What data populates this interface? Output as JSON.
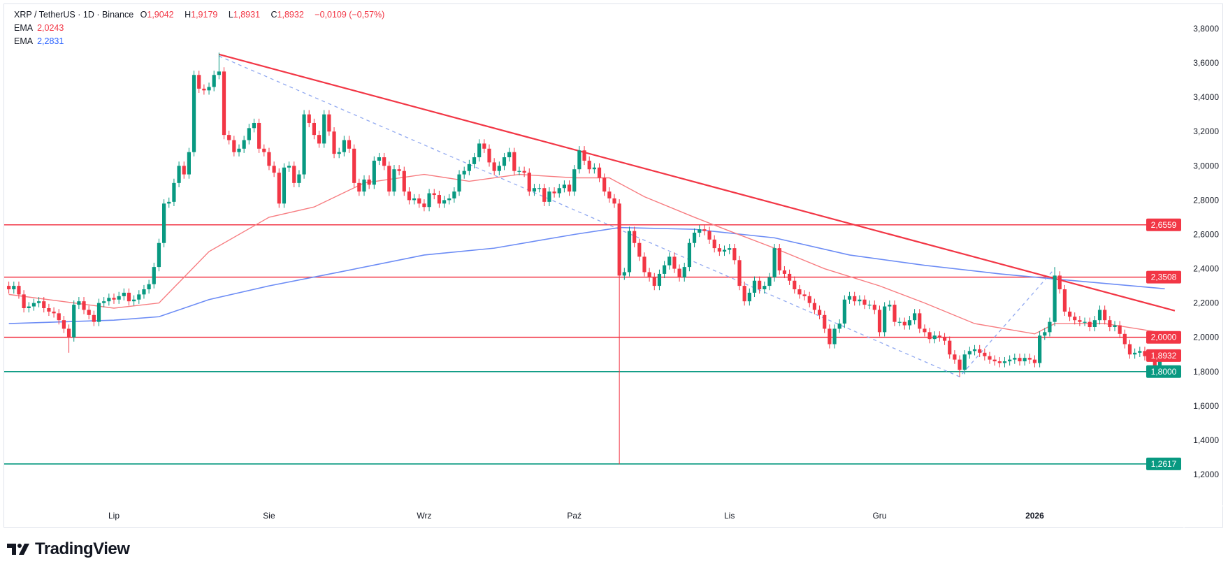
{
  "header": {
    "symbol": "XRP / TetherUS · 1D · Binance",
    "o_label": "O",
    "o": "1,9042",
    "h_label": "H",
    "h": "1,9179",
    "l_label": "L",
    "l": "1,8931",
    "c_label": "C",
    "c": "1,8932",
    "change": "−0,0109 (−0,57%)",
    "ema1_label": "EMA",
    "ema1_value": "2,0243",
    "ema2_label": "EMA",
    "ema2_value": "2,2831"
  },
  "branding": {
    "logo_text": "TradingView"
  },
  "colors": {
    "up": "#089981",
    "down": "#f23645",
    "ema_fast": "#f77c80",
    "ema_slow": "#6c8cf5",
    "support": "#089981",
    "resistance": "#f23645"
  },
  "chart_data": {
    "type": "candlestick",
    "title": "XRP / TetherUS · 1D · Binance",
    "interval": "1D",
    "first_date": "2025-06-10",
    "ylim": [
      1.1,
      3.9
    ],
    "y_ticks": [
      "3,8000",
      "3,6000",
      "3,4000",
      "3,2000",
      "3,0000",
      "2,8000",
      "2,6000",
      "2,4000",
      "2,2000",
      "2,0000",
      "1,8000",
      "1,6000",
      "1,4000",
      "1,2000"
    ],
    "y_tick_values": [
      3.8,
      3.6,
      3.4,
      3.2,
      3.0,
      2.8,
      2.6,
      2.4,
      2.2,
      2.0,
      1.8,
      1.6,
      1.4,
      1.2
    ],
    "x_ticks": [
      {
        "label": "Lip",
        "date": "2025-07-01"
      },
      {
        "label": "Sie",
        "date": "2025-08-01"
      },
      {
        "label": "Wrz",
        "date": "2025-09-01"
      },
      {
        "label": "Paź",
        "date": "2025-10-01"
      },
      {
        "label": "Lis",
        "date": "2025-11-01"
      },
      {
        "label": "Gru",
        "date": "2025-12-01"
      },
      {
        "label": "2026",
        "date": "2026-01-01"
      }
    ],
    "closes": [
      2.28,
      2.3,
      2.25,
      2.17,
      2.18,
      2.2,
      2.21,
      2.17,
      2.15,
      2.14,
      2.1,
      2.05,
      2.0,
      2.19,
      2.21,
      2.16,
      2.13,
      2.09,
      2.2,
      2.21,
      2.23,
      2.22,
      2.24,
      2.26,
      2.21,
      2.22,
      2.25,
      2.28,
      2.31,
      2.41,
      2.55,
      2.78,
      2.79,
      2.9,
      3.0,
      2.95,
      3.08,
      3.53,
      3.45,
      3.44,
      3.46,
      3.53,
      3.55,
      3.18,
      3.15,
      3.08,
      3.1,
      3.15,
      3.22,
      3.25,
      3.1,
      3.08,
      3.0,
      2.96,
      2.78,
      2.99,
      3.0,
      2.9,
      2.95,
      3.3,
      3.25,
      3.18,
      3.13,
      3.3,
      3.2,
      3.07,
      3.08,
      3.15,
      3.1,
      2.9,
      2.85,
      2.92,
      2.89,
      3.03,
      3.05,
      3.0,
      2.85,
      2.98,
      2.97,
      2.85,
      2.8,
      2.81,
      2.78,
      2.76,
      2.84,
      2.83,
      2.78,
      2.8,
      2.81,
      2.85,
      2.95,
      2.97,
      3.01,
      3.05,
      3.13,
      3.1,
      3.02,
      2.97,
      3.0,
      3.05,
      3.08,
      2.97,
      2.97,
      2.96,
      2.85,
      2.87,
      2.87,
      2.79,
      2.85,
      2.84,
      2.87,
      2.89,
      2.85,
      2.98,
      3.09,
      3.03,
      2.98,
      2.99,
      2.93,
      2.85,
      2.81,
      2.78,
      2.36,
      2.38,
      2.62,
      2.55,
      2.47,
      2.38,
      2.35,
      2.3,
      2.37,
      2.42,
      2.47,
      2.4,
      2.35,
      2.41,
      2.55,
      2.61,
      2.63,
      2.62,
      2.57,
      2.52,
      2.5,
      2.51,
      2.52,
      2.45,
      2.3,
      2.21,
      2.26,
      2.33,
      2.28,
      2.3,
      2.35,
      2.52,
      2.39,
      2.37,
      2.33,
      2.28,
      2.25,
      2.24,
      2.2,
      2.16,
      2.13,
      2.05,
      1.96,
      2.05,
      2.08,
      2.22,
      2.24,
      2.21,
      2.22,
      2.19,
      2.19,
      2.16,
      2.03,
      2.18,
      2.19,
      2.09,
      2.09,
      2.07,
      2.1,
      2.14,
      2.05,
      2.03,
      1.99,
      2.01,
      2.0,
      1.98,
      1.9,
      1.87,
      1.81,
      1.9,
      1.92,
      1.93,
      1.91,
      1.89,
      1.87,
      1.86,
      1.85,
      1.86,
      1.87,
      1.88,
      1.86,
      1.88,
      1.87,
      1.85,
      2.01,
      2.03,
      2.09,
      2.36,
      2.28,
      2.15,
      2.12,
      2.1,
      2.09,
      2.09,
      2.06,
      2.1,
      2.16,
      2.1,
      2.06,
      2.07,
      2.02,
      1.96,
      1.9,
      1.91,
      1.92,
      1.89,
      1.89,
      1.82,
      1.9042,
      1.8932
    ],
    "last_candle": {
      "date": "2026-01-27",
      "open": 1.9042,
      "high": 1.9179,
      "low": 1.8931,
      "close": 1.8932
    },
    "notable_wicks": [
      {
        "date": "2025-06-22",
        "low": 1.91
      },
      {
        "date": "2025-07-22",
        "high": 3.66
      },
      {
        "date": "2025-10-10",
        "low": 1.26
      },
      {
        "date": "2025-12-17",
        "low": 1.77
      },
      {
        "date": "2026-01-05",
        "high": 2.41
      }
    ],
    "ema_fast": [
      [
        "2025-06-10",
        2.25
      ],
      [
        "2025-07-01",
        2.17
      ],
      [
        "2025-07-10",
        2.2
      ],
      [
        "2025-07-20",
        2.5
      ],
      [
        "2025-08-01",
        2.7
      ],
      [
        "2025-08-10",
        2.76
      ],
      [
        "2025-08-20",
        2.9
      ],
      [
        "2025-09-01",
        2.95
      ],
      [
        "2025-09-10",
        2.91
      ],
      [
        "2025-09-20",
        2.95
      ],
      [
        "2025-10-01",
        2.93
      ],
      [
        "2025-10-08",
        2.93
      ],
      [
        "2025-10-15",
        2.82
      ],
      [
        "2025-10-25",
        2.7
      ],
      [
        "2025-11-01",
        2.62
      ],
      [
        "2025-11-10",
        2.52
      ],
      [
        "2025-11-20",
        2.4
      ],
      [
        "2025-12-01",
        2.3
      ],
      [
        "2025-12-10",
        2.2
      ],
      [
        "2025-12-20",
        2.08
      ],
      [
        "2026-01-01",
        2.02
      ],
      [
        "2026-01-05",
        2.08
      ],
      [
        "2026-01-15",
        2.08
      ],
      [
        "2026-01-27",
        2.0243
      ]
    ],
    "ema_slow": [
      [
        "2025-06-10",
        2.08
      ],
      [
        "2025-07-01",
        2.1
      ],
      [
        "2025-07-10",
        2.12
      ],
      [
        "2025-07-20",
        2.22
      ],
      [
        "2025-08-01",
        2.3
      ],
      [
        "2025-08-15",
        2.38
      ],
      [
        "2025-09-01",
        2.48
      ],
      [
        "2025-09-15",
        2.52
      ],
      [
        "2025-10-01",
        2.6
      ],
      [
        "2025-10-10",
        2.64
      ],
      [
        "2025-10-25",
        2.63
      ],
      [
        "2025-11-10",
        2.58
      ],
      [
        "2025-11-25",
        2.48
      ],
      [
        "2025-12-10",
        2.42
      ],
      [
        "2025-12-25",
        2.37
      ],
      [
        "2026-01-05",
        2.34
      ],
      [
        "2026-01-27",
        2.2831
      ]
    ],
    "horizontal_levels": [
      {
        "value": 2.6559,
        "label": "2,6559",
        "kind": "resistance"
      },
      {
        "value": 2.3508,
        "label": "2,3508",
        "kind": "resistance"
      },
      {
        "value": 2.0,
        "label": "2,0000",
        "kind": "resistance"
      },
      {
        "value": 1.8,
        "label": "1,8000",
        "kind": "support"
      },
      {
        "value": 1.2617,
        "label": "1,2617",
        "kind": "support"
      }
    ],
    "last_price_label": {
      "value": 1.8932,
      "label": "1,8932"
    },
    "trendline": [
      [
        "2025-07-22",
        3.65
      ],
      [
        "2026-01-29",
        2.155
      ]
    ],
    "dashed_path": [
      [
        "2025-07-22",
        3.64
      ],
      [
        "2025-12-17",
        1.77
      ],
      [
        "2026-01-05",
        2.4
      ]
    ]
  }
}
